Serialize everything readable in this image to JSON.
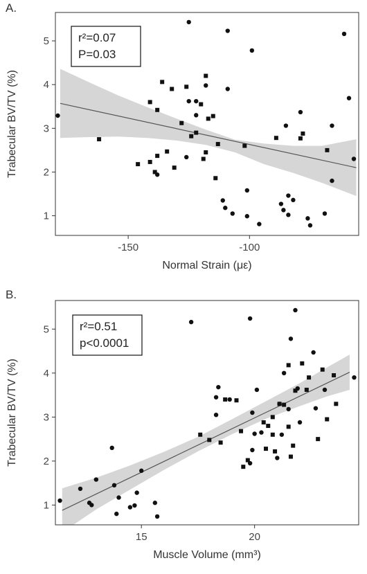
{
  "chart_data": [
    {
      "type": "scatter",
      "panel_label": "A.",
      "xlabel": "Normal Strain (με)",
      "ylabel": "Trabecular BV/TV (%)",
      "xlim": [
        -180,
        -55
      ],
      "ylim": [
        0.55,
        5.65
      ],
      "xticks": [
        -150,
        -100
      ],
      "yticks": [
        1,
        2,
        3,
        4,
        5
      ],
      "grid": false,
      "stats": [
        "r²=0.07",
        "P=0.03"
      ],
      "fit": {
        "x": [
          -178,
          -56
        ],
        "y": [
          3.57,
          2.1
        ]
      },
      "band": {
        "x": [
          -178,
          -166,
          -154,
          -142,
          -130,
          -118,
          -106,
          -94,
          -82,
          -70,
          -56
        ],
        "lower": [
          2.78,
          2.8,
          2.81,
          2.78,
          2.72,
          2.62,
          2.45,
          2.18,
          1.98,
          1.75,
          1.45
        ],
        "upper": [
          4.36,
          4.05,
          3.75,
          3.48,
          3.22,
          2.97,
          2.74,
          2.65,
          2.6,
          2.6,
          2.75
        ]
      },
      "series": [
        {
          "marker": "circle",
          "points": [
            [
              -179,
              3.29
            ],
            [
              -125,
              5.43
            ],
            [
              -109,
              5.23
            ],
            [
              -99,
              4.78
            ],
            [
              -61,
              5.16
            ],
            [
              -118,
              3.98
            ],
            [
              -109,
              3.9
            ],
            [
              -122,
              3.62
            ],
            [
              -125,
              3.62
            ],
            [
              -79,
              3.37
            ],
            [
              -59,
              3.69
            ],
            [
              -66,
              3.06
            ],
            [
              -85,
              3.06
            ],
            [
              -122,
              3.3
            ],
            [
              -126,
              2.34
            ],
            [
              -101,
              1.58
            ],
            [
              -111,
              1.35
            ],
            [
              -110,
              1.18
            ],
            [
              -107,
              1.05
            ],
            [
              -101,
              0.99
            ],
            [
              -96,
              0.81
            ],
            [
              -84,
              1.46
            ],
            [
              -82,
              1.36
            ],
            [
              -87,
              1.27
            ],
            [
              -86,
              1.13
            ],
            [
              -84,
              1.02
            ],
            [
              -76,
              0.94
            ],
            [
              -75,
              0.78
            ],
            [
              -69,
              1.05
            ],
            [
              -66,
              1.8
            ],
            [
              -57,
              2.3
            ],
            [
              -138,
              1.94
            ]
          ]
        },
        {
          "marker": "square",
          "points": [
            [
              -162,
              2.75
            ],
            [
              -136,
              4.06
            ],
            [
              -132,
              3.9
            ],
            [
              -126,
              3.95
            ],
            [
              -118,
              4.2
            ],
            [
              -141,
              3.6
            ],
            [
              -120,
              3.55
            ],
            [
              -128,
              3.12
            ],
            [
              -124,
              2.82
            ],
            [
              -115,
              3.28
            ],
            [
              -113,
              2.64
            ],
            [
              -102,
              2.6
            ],
            [
              -118,
              2.45
            ],
            [
              -119,
              2.3
            ],
            [
              -114,
              1.86
            ],
            [
              -146,
              2.18
            ],
            [
              -138,
              2.37
            ],
            [
              -139,
              2.0
            ],
            [
              -141,
              2.23
            ],
            [
              -134,
              2.47
            ],
            [
              -131,
              2.1
            ],
            [
              -122,
              2.9
            ],
            [
              -138,
              3.42
            ],
            [
              -117,
              3.22
            ],
            [
              -89,
              2.78
            ],
            [
              -78,
              2.88
            ],
            [
              -79,
              2.77
            ],
            [
              -68,
              2.5
            ]
          ]
        }
      ]
    },
    {
      "type": "scatter",
      "panel_label": "B.",
      "xlabel": "Muscle Volume (mm³)",
      "ylabel": "Trabecular BV/TV (%)",
      "xlim": [
        11.2,
        24.6
      ],
      "ylim": [
        0.55,
        5.65
      ],
      "xticks": [
        15,
        20
      ],
      "yticks": [
        1,
        2,
        3,
        4,
        5
      ],
      "grid": false,
      "stats": [
        "r²=0.51",
        "p<0.0001"
      ],
      "fit": {
        "x": [
          11.5,
          24.2
        ],
        "y": [
          0.88,
          4.02
        ]
      },
      "band": {
        "x": [
          11.5,
          13,
          14.5,
          16,
          17.5,
          19,
          20.5,
          22,
          23.2,
          24.2
        ],
        "lower": [
          0.38,
          0.9,
          1.35,
          1.8,
          2.22,
          2.61,
          2.96,
          3.25,
          3.47,
          3.62
        ],
        "upper": [
          1.38,
          1.62,
          1.9,
          2.21,
          2.55,
          2.95,
          3.36,
          3.77,
          4.13,
          4.42
        ]
      },
      "series": [
        {
          "marker": "circle",
          "points": [
            [
              11.4,
              1.1
            ],
            [
              12.3,
              1.37
            ],
            [
              12.7,
              1.05
            ],
            [
              12.8,
              1.0
            ],
            [
              13.0,
              1.58
            ],
            [
              13.7,
              2.3
            ],
            [
              13.8,
              1.45
            ],
            [
              13.9,
              0.8
            ],
            [
              14.0,
              1.17
            ],
            [
              14.5,
              0.95
            ],
            [
              14.7,
              0.99
            ],
            [
              14.8,
              1.28
            ],
            [
              15.0,
              1.78
            ],
            [
              15.6,
              1.05
            ],
            [
              15.7,
              0.74
            ],
            [
              17.2,
              5.16
            ],
            [
              19.8,
              5.24
            ],
            [
              21.8,
              5.43
            ],
            [
              21.6,
              4.78
            ],
            [
              22.6,
              4.47
            ],
            [
              21.3,
              4.0
            ],
            [
              18.4,
              3.68
            ],
            [
              18.3,
              3.45
            ],
            [
              18.9,
              3.4
            ],
            [
              20.1,
              3.62
            ],
            [
              21.9,
              3.65
            ],
            [
              23.1,
              3.62
            ],
            [
              18.3,
              3.05
            ],
            [
              19.9,
              3.1
            ],
            [
              21.1,
              3.3
            ],
            [
              20.0,
              2.62
            ],
            [
              19.9,
              2.25
            ],
            [
              21.0,
              2.07
            ],
            [
              19.8,
              1.95
            ],
            [
              21.2,
              2.6
            ],
            [
              22.0,
              2.88
            ],
            [
              24.4,
              3.9
            ],
            [
              22.7,
              3.2
            ],
            [
              21.5,
              3.18
            ],
            [
              20.3,
              2.65
            ]
          ]
        },
        {
          "marker": "square",
          "points": [
            [
              17.6,
              2.6
            ],
            [
              18.0,
              2.48
            ],
            [
              18.5,
              2.42
            ],
            [
              18.7,
              3.4
            ],
            [
              19.2,
              3.38
            ],
            [
              19.4,
              2.68
            ],
            [
              19.5,
              1.87
            ],
            [
              19.7,
              2.02
            ],
            [
              20.5,
              2.28
            ],
            [
              20.6,
              2.8
            ],
            [
              20.8,
              2.6
            ],
            [
              20.9,
              2.22
            ],
            [
              21.1,
              3.3
            ],
            [
              21.3,
              3.28
            ],
            [
              21.5,
              2.78
            ],
            [
              21.6,
              2.1
            ],
            [
              21.7,
              2.35
            ],
            [
              21.8,
              3.6
            ],
            [
              22.1,
              4.22
            ],
            [
              22.3,
              3.62
            ],
            [
              22.4,
              3.9
            ],
            [
              22.8,
              2.5
            ],
            [
              23.0,
              4.08
            ],
            [
              23.2,
              2.95
            ],
            [
              23.5,
              3.95
            ],
            [
              23.6,
              3.3
            ],
            [
              21.5,
              4.18
            ],
            [
              20.8,
              3.0
            ],
            [
              20.4,
              2.88
            ]
          ]
        }
      ]
    }
  ]
}
